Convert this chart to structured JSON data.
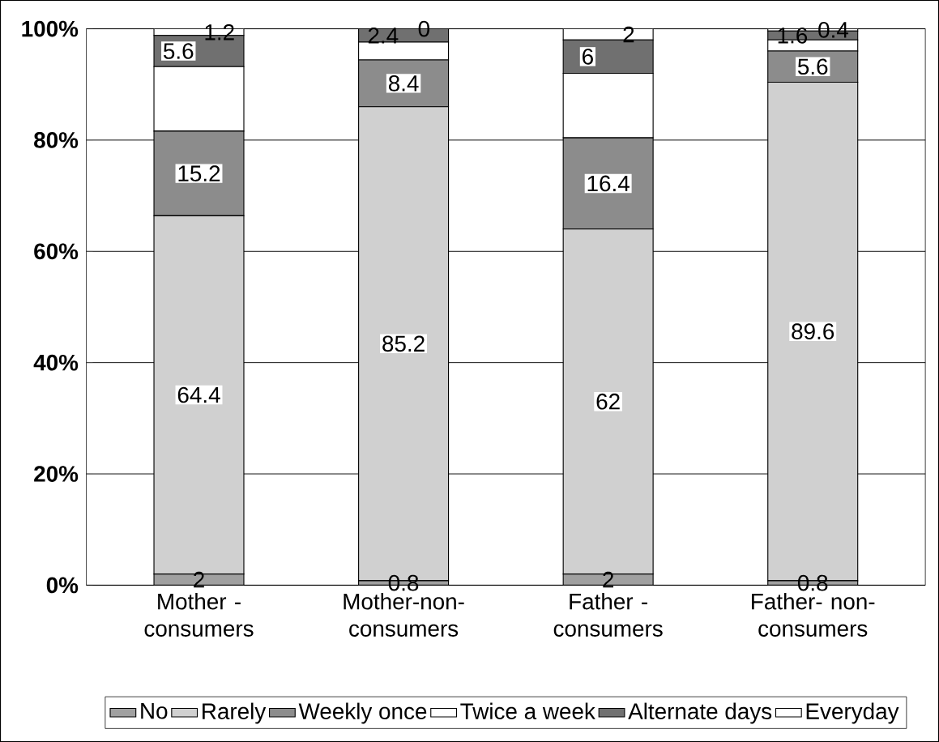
{
  "chart_data": {
    "type": "bar",
    "stacked": true,
    "categories": [
      "Mother - consumers",
      "Mother-non-consumers",
      "Father - consumers",
      "Father- non-consumers"
    ],
    "series": [
      {
        "name": "No",
        "color": "#a0a0a0",
        "values": [
          2,
          0.8,
          2,
          0.8
        ],
        "value_labels": [
          "2",
          "0.8",
          "2",
          "0.8"
        ]
      },
      {
        "name": "Rarely",
        "color": "#d0d0d0",
        "values": [
          64.4,
          85.2,
          62,
          89.6
        ],
        "value_labels": [
          "64.4",
          "85.2",
          "62",
          "89.6"
        ]
      },
      {
        "name": "Weekly once",
        "color": "#8c8c8c",
        "values": [
          15.2,
          8.4,
          16.4,
          5.6
        ],
        "value_labels": [
          "15.2",
          "8.4",
          "16.4",
          "5.6"
        ]
      },
      {
        "name": "Twice a week",
        "color": "#ffffff",
        "values": [
          11.6,
          3.2,
          11.6,
          2
        ],
        "value_labels": [
          null,
          null,
          null,
          null
        ]
      },
      {
        "name": "Alternate days",
        "color": "#707070",
        "values": [
          5.6,
          2.4,
          6,
          1.6
        ],
        "value_labels": [
          "5.6",
          "2.4",
          "6",
          "1.6"
        ]
      },
      {
        "name": "Everyday",
        "color": "#ffffff",
        "values": [
          1.2,
          0,
          2,
          0.4
        ],
        "value_labels": [
          "1.2",
          "0",
          "2",
          "0.4"
        ]
      }
    ],
    "ylim": [
      0,
      100
    ],
    "yticks": [
      {
        "value": 0,
        "label": "0%"
      },
      {
        "value": 20,
        "label": "20%"
      },
      {
        "value": 40,
        "label": "40%"
      },
      {
        "value": 60,
        "label": "60%"
      },
      {
        "value": 80,
        "label": "80%"
      },
      {
        "value": 100,
        "label": "100%"
      }
    ],
    "grid": "y",
    "legend": "bottom"
  }
}
